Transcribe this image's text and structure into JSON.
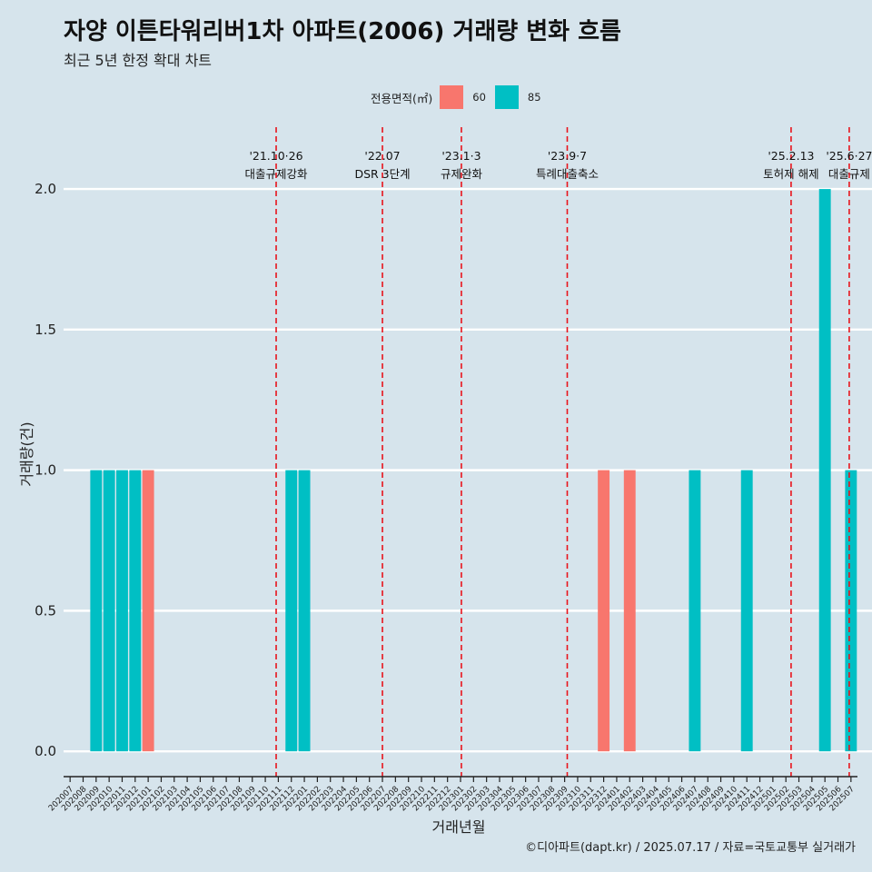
{
  "title": "자양 이튼타워리버1차 아파트(2006) 거래량 변화 흐름",
  "subtitle": "최근 5년 한정 확대 차트",
  "caption": "©디아파트(dapt.kr) / 2025.07.17 / 자료=국토교통부 실거래가",
  "colors": {
    "background": "#d6e4ec",
    "s60": "#f8766d",
    "s85": "#00bfc4",
    "event_line": "#e8141c",
    "grid": "#ffffff"
  },
  "chart_data": {
    "type": "bar",
    "xlabel": "거래년월",
    "ylabel": "거래량(건)",
    "ylim": [
      -0.09,
      2.22
    ],
    "yticks": [
      "0.0",
      "0.5",
      "1.0",
      "1.5",
      "2.0"
    ],
    "legend": {
      "title": "전용면적(㎡)",
      "position": "top"
    },
    "categories": [
      "202007",
      "202008",
      "202009",
      "202010",
      "202011",
      "202012",
      "202101",
      "202102",
      "202103",
      "202104",
      "202105",
      "202106",
      "202107",
      "202108",
      "202109",
      "202110",
      "202111",
      "202112",
      "202201",
      "202202",
      "202203",
      "202204",
      "202205",
      "202206",
      "202207",
      "202208",
      "202209",
      "202210",
      "202211",
      "202212",
      "202301",
      "202302",
      "202303",
      "202304",
      "202305",
      "202306",
      "202307",
      "202308",
      "202309",
      "202310",
      "202311",
      "202312",
      "202401",
      "202402",
      "202403",
      "202404",
      "202405",
      "202406",
      "202407",
      "202408",
      "202409",
      "202410",
      "202411",
      "202412",
      "202501",
      "202502",
      "202503",
      "202504",
      "202505",
      "202506",
      "202507"
    ],
    "series": [
      {
        "name": "60",
        "color": "#f8766d",
        "points": [
          {
            "x": "202101",
            "y": 1
          },
          {
            "x": "202312",
            "y": 1
          },
          {
            "x": "202402",
            "y": 1
          }
        ]
      },
      {
        "name": "85",
        "color": "#00bfc4",
        "points": [
          {
            "x": "202009",
            "y": 1
          },
          {
            "x": "202010",
            "y": 1
          },
          {
            "x": "202011",
            "y": 1
          },
          {
            "x": "202012",
            "y": 1
          },
          {
            "x": "202112",
            "y": 1
          },
          {
            "x": "202201",
            "y": 1
          },
          {
            "x": "202407",
            "y": 1
          },
          {
            "x": "202411",
            "y": 1
          },
          {
            "x": "202505",
            "y": 2
          },
          {
            "x": "202507",
            "y": 1
          }
        ]
      }
    ],
    "events": [
      {
        "date": "2021-10-26",
        "label1": "'21.10·26",
        "label2": "대출규제강화"
      },
      {
        "date": "2022-07-01",
        "label1": "'22.07",
        "label2": "DSR 3단계"
      },
      {
        "date": "2023-01-03",
        "label1": "'23.1·3",
        "label2": "규제완화"
      },
      {
        "date": "2023-09-07",
        "label1": "'23.9·7",
        "label2": "특례대출축소"
      },
      {
        "date": "2025-02-13",
        "label1": "'25.2.13",
        "label2": "토허제 해제"
      },
      {
        "date": "2025-06-27",
        "label1": "'25.6·27",
        "label2": "대출규제"
      }
    ]
  }
}
